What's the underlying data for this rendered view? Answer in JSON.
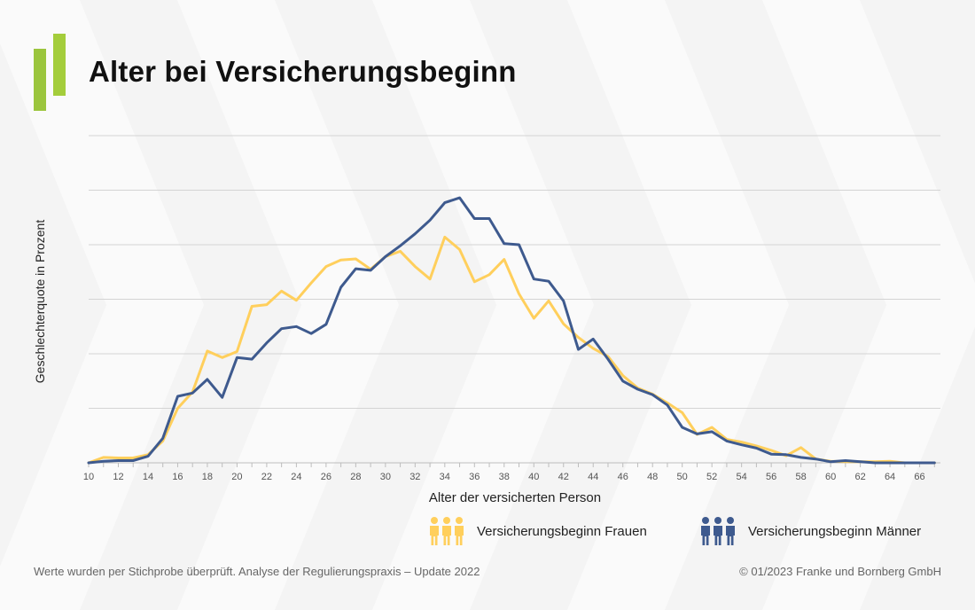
{
  "header": {
    "title": "Alter bei Versicherungsbeginn"
  },
  "chart_data": {
    "type": "line",
    "title": "Alter bei Versicherungsbeginn",
    "xlabel": "Alter der versicherten Person",
    "ylabel": "Geschlechterquote in Prozent",
    "x": [
      10,
      11,
      12,
      13,
      14,
      15,
      16,
      17,
      18,
      19,
      20,
      21,
      22,
      23,
      24,
      25,
      26,
      27,
      28,
      29,
      30,
      31,
      32,
      33,
      34,
      35,
      36,
      37,
      38,
      39,
      40,
      41,
      42,
      43,
      44,
      45,
      46,
      47,
      48,
      49,
      50,
      51,
      52,
      53,
      54,
      55,
      56,
      57,
      58,
      59,
      60,
      61,
      62,
      63,
      64,
      65,
      66,
      67
    ],
    "xlim": [
      10,
      67.4
    ],
    "ylim": [
      0,
      6
    ],
    "y_tick_labels_shown": false,
    "x_tick_labels": [
      "10",
      "12",
      "14",
      "16",
      "18",
      "20",
      "22",
      "24",
      "26",
      "28",
      "30",
      "32",
      "34",
      "36",
      "38",
      "40",
      "42",
      "44",
      "46",
      "48",
      "50",
      "52",
      "54",
      "56",
      "58",
      "60",
      "62",
      "64",
      "66"
    ],
    "grid": true,
    "legend_position": "bottom-right",
    "series": [
      {
        "name": "Versicherungsbeginn Frauen",
        "color": "#ffcf5c",
        "values": [
          0.0,
          0.1,
          0.09,
          0.09,
          0.15,
          0.4,
          1.0,
          1.3,
          2.05,
          1.93,
          2.04,
          2.87,
          2.9,
          3.15,
          2.98,
          3.3,
          3.6,
          3.72,
          3.74,
          3.55,
          3.78,
          3.88,
          3.6,
          3.37,
          4.14,
          3.91,
          3.32,
          3.45,
          3.73,
          3.1,
          2.65,
          2.97,
          2.55,
          2.3,
          2.1,
          1.95,
          1.6,
          1.37,
          1.26,
          1.1,
          0.92,
          0.52,
          0.65,
          0.43,
          0.38,
          0.31,
          0.23,
          0.13,
          0.28,
          0.07,
          0.03,
          0.02,
          0.02,
          0.02,
          0.03,
          0.0,
          0.0,
          0.0
        ]
      },
      {
        "name": "Versicherungsbeginn Männer",
        "color": "#3e5a8e",
        "values": [
          0.0,
          0.03,
          0.04,
          0.04,
          0.12,
          0.45,
          1.22,
          1.28,
          1.53,
          1.2,
          1.93,
          1.9,
          2.2,
          2.46,
          2.5,
          2.37,
          2.54,
          3.22,
          3.56,
          3.53,
          3.78,
          3.98,
          4.2,
          4.45,
          4.77,
          4.86,
          4.48,
          4.48,
          4.02,
          4.0,
          3.37,
          3.33,
          2.97,
          2.08,
          2.27,
          1.9,
          1.5,
          1.35,
          1.25,
          1.06,
          0.65,
          0.53,
          0.57,
          0.4,
          0.33,
          0.27,
          0.16,
          0.15,
          0.1,
          0.07,
          0.02,
          0.04,
          0.02,
          0.0,
          0.0,
          0.0,
          0.0,
          0.0
        ]
      }
    ]
  },
  "legend": {
    "women": "Versicherungsbeginn Frauen",
    "men": "Versicherungsbeginn Männer"
  },
  "footer": {
    "left": "Werte wurden per Stichprobe überprüft. Analyse der Regulierungspraxis – Update 2022",
    "right": "© 01/2023 Franke und Bornberg GmbH"
  },
  "colors": {
    "women": "#ffcf5c",
    "men": "#3e5a8e",
    "logo": "#9bc53d",
    "grid": "#d4d4d4"
  }
}
